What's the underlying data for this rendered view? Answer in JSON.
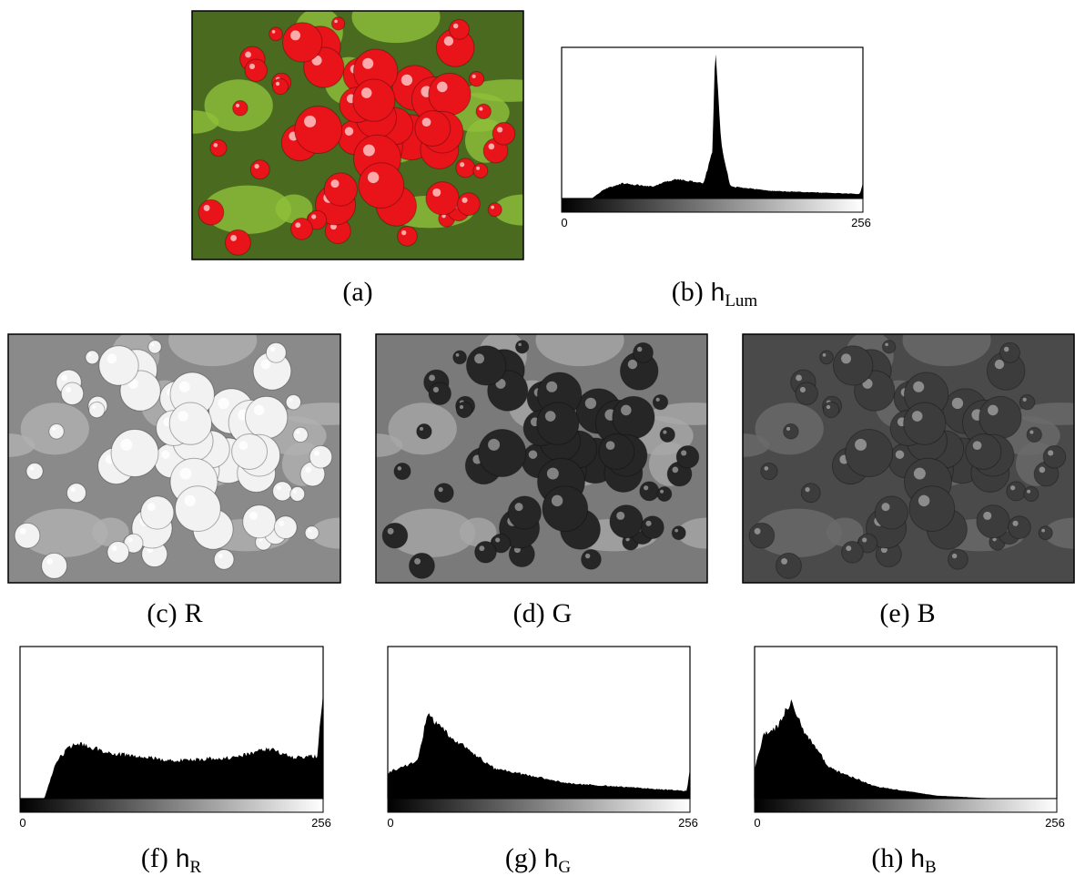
{
  "panels": [
    {
      "label": "(a)"
    },
    {
      "label": "(b)",
      "symbol": "h",
      "subscript": "Lum",
      "axis_start": "0",
      "axis_end": "256"
    },
    {
      "label": "(c)",
      "channel": "R"
    },
    {
      "label": "(d)",
      "channel": "G"
    },
    {
      "label": "(e)",
      "channel": "B"
    },
    {
      "label": "(f)",
      "symbol": "h",
      "subscript": "R",
      "axis_start": "0",
      "axis_end": "256"
    },
    {
      "label": "(g)",
      "symbol": "h",
      "subscript": "G",
      "axis_start": "0",
      "axis_end": "256"
    },
    {
      "label": "(h)",
      "symbol": "h",
      "subscript": "B",
      "axis_start": "0",
      "axis_end": "256"
    }
  ]
}
